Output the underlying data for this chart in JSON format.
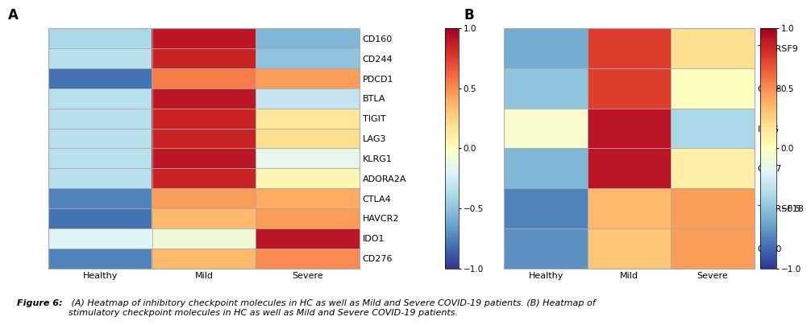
{
  "panel_A": {
    "genes": [
      "CD160",
      "CD244",
      "PDCD1",
      "BTLA",
      "TIGIT",
      "LAG3",
      "KLRG1",
      "ADORA2A",
      "CTLA4",
      "HAVCR2",
      "IDO1",
      "CD276"
    ],
    "columns": [
      "Healthy",
      "Mild",
      "Severe"
    ],
    "values": [
      [
        -0.4,
        0.9,
        -0.55
      ],
      [
        -0.35,
        0.85,
        -0.5
      ],
      [
        -0.8,
        0.55,
        0.45
      ],
      [
        -0.35,
        0.9,
        -0.3
      ],
      [
        -0.35,
        0.85,
        0.15
      ],
      [
        -0.35,
        0.85,
        0.2
      ],
      [
        -0.35,
        0.9,
        -0.15
      ],
      [
        -0.35,
        0.85,
        0.05
      ],
      [
        -0.75,
        0.45,
        0.4
      ],
      [
        -0.8,
        0.35,
        0.45
      ],
      [
        -0.2,
        -0.1,
        0.9
      ],
      [
        -0.75,
        0.35,
        0.5
      ]
    ]
  },
  "panel_B": {
    "genes": [
      "TNFRSF9",
      "CD28",
      "ICOS",
      "CD27",
      "TNFRSF18",
      "CD40"
    ],
    "columns": [
      "Healthy",
      "Mild",
      "Severe"
    ],
    "values": [
      [
        -0.6,
        0.75,
        0.2
      ],
      [
        -0.5,
        0.75,
        0.0
      ],
      [
        -0.05,
        0.9,
        -0.4
      ],
      [
        -0.55,
        0.9,
        0.1
      ],
      [
        -0.75,
        0.35,
        0.45
      ],
      [
        -0.7,
        0.3,
        0.45
      ]
    ]
  },
  "cmap": "RdYlBu_r",
  "vmin": -1,
  "vmax": 1,
  "colorbar_ticks": [
    1,
    0.5,
    0,
    -0.5,
    -1
  ],
  "panel_A_label": "A",
  "panel_B_label": "B",
  "background_color": "#ffffff",
  "grid_color": "#aaaaaa",
  "label_fontsize": 8,
  "tick_fontsize": 7.5,
  "caption_fontsize": 8,
  "caption_bold": "Figure 6:",
  "caption_normal": " (A) Heatmap of inhibitory checkpoint molecules in HC as well as Mild and Severe COVID-19 patients. (B) Heatmap of\nstimulatory checkpoint molecules in HC as well as Mild and Severe COVID-19 patients."
}
